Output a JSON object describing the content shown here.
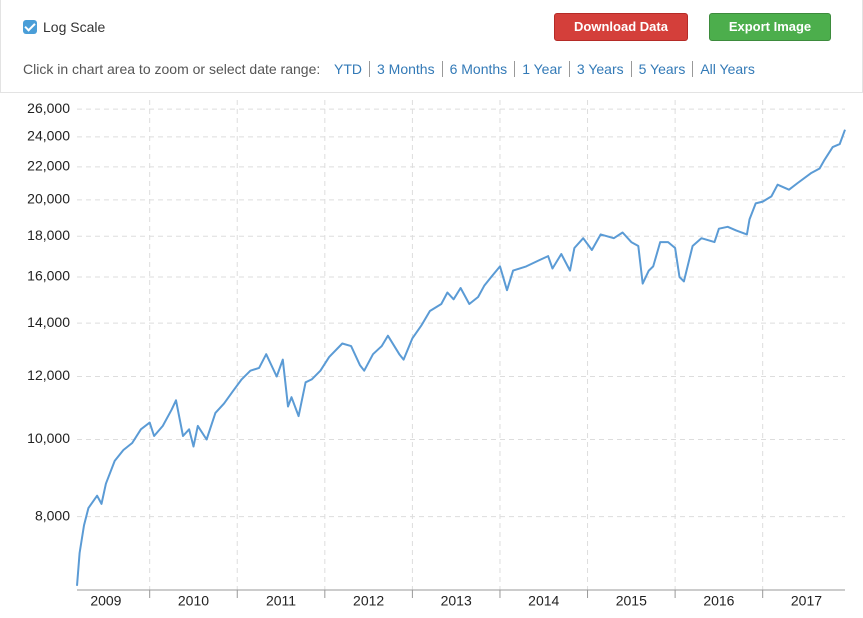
{
  "controls": {
    "log_scale_label": "Log Scale",
    "download_button": "Download Data",
    "export_button": "Export Image",
    "zoom_hint": "Click in chart area to zoom or select date range:",
    "ranges": [
      "YTD",
      "3 Months",
      "6 Months",
      "1 Year",
      "3 Years",
      "5 Years",
      "All Years"
    ]
  },
  "chart_data": {
    "type": "line",
    "log_scale": true,
    "grid": true,
    "color": "#5b9bd5",
    "x": [
      2009.17,
      2009.2,
      2009.25,
      2009.3,
      2009.4,
      2009.45,
      2009.5,
      2009.6,
      2009.7,
      2009.8,
      2009.9,
      2010.0,
      2010.05,
      2010.15,
      2010.25,
      2010.3,
      2010.38,
      2010.45,
      2010.5,
      2010.55,
      2010.65,
      2010.75,
      2010.85,
      2010.95,
      2011.05,
      2011.15,
      2011.25,
      2011.33,
      2011.45,
      2011.52,
      2011.58,
      2011.62,
      2011.7,
      2011.78,
      2011.85,
      2011.95,
      2012.05,
      2012.2,
      2012.3,
      2012.4,
      2012.45,
      2012.55,
      2012.65,
      2012.72,
      2012.85,
      2012.9,
      2013.0,
      2013.1,
      2013.2,
      2013.33,
      2013.4,
      2013.47,
      2013.55,
      2013.65,
      2013.75,
      2013.82,
      2013.9,
      2014.0,
      2014.08,
      2014.15,
      2014.3,
      2014.45,
      2014.55,
      2014.6,
      2014.7,
      2014.8,
      2014.85,
      2014.95,
      2015.05,
      2015.15,
      2015.3,
      2015.4,
      2015.5,
      2015.58,
      2015.63,
      2015.7,
      2015.75,
      2015.83,
      2015.92,
      2016.0,
      2016.05,
      2016.1,
      2016.2,
      2016.3,
      2016.45,
      2016.5,
      2016.6,
      2016.7,
      2016.82,
      2016.85,
      2016.92,
      2017.0,
      2017.1,
      2017.17,
      2017.3,
      2017.4,
      2017.55,
      2017.65,
      2017.7,
      2017.8,
      2017.88,
      2017.94
    ],
    "values": [
      6550,
      7200,
      7800,
      8200,
      8500,
      8300,
      8800,
      9400,
      9700,
      9900,
      10300,
      10500,
      10100,
      10400,
      10900,
      11200,
      10100,
      10300,
      9800,
      10400,
      10000,
      10800,
      11100,
      11500,
      11900,
      12200,
      12300,
      12800,
      12000,
      12600,
      11000,
      11300,
      10700,
      11800,
      11900,
      12200,
      12700,
      13200,
      13100,
      12400,
      12200,
      12800,
      13100,
      13500,
      12800,
      12600,
      13400,
      13900,
      14500,
      14800,
      15300,
      15000,
      15500,
      14800,
      15100,
      15600,
      16000,
      16500,
      15400,
      16300,
      16500,
      16800,
      17000,
      16400,
      17100,
      16300,
      17400,
      17900,
      17300,
      18100,
      17900,
      18200,
      17700,
      17500,
      15700,
      16300,
      16500,
      17700,
      17700,
      17400,
      16000,
      15800,
      17500,
      17900,
      17700,
      18400,
      18500,
      18300,
      18100,
      18900,
      19800,
      19900,
      20200,
      20900,
      20600,
      21000,
      21600,
      21900,
      22400,
      23300,
      23500,
      24500
    ],
    "xlim": [
      2009.17,
      2017.94
    ],
    "xticks": [
      2009,
      2010,
      2011,
      2012,
      2013,
      2014,
      2015,
      2016,
      2017
    ],
    "ylim": [
      6470,
      26700
    ],
    "yticks": [
      {
        "value": 8000,
        "label": "8,000"
      },
      {
        "value": 10000,
        "label": "10,000"
      },
      {
        "value": 12000,
        "label": "12,000"
      },
      {
        "value": 14000,
        "label": "14,000"
      },
      {
        "value": 16000,
        "label": "16,000"
      },
      {
        "value": 18000,
        "label": "18,000"
      },
      {
        "value": 20000,
        "label": "20,000"
      },
      {
        "value": 22000,
        "label": "22,000"
      },
      {
        "value": 24000,
        "label": "24,000"
      },
      {
        "value": 26000,
        "label": "26,000"
      }
    ]
  }
}
